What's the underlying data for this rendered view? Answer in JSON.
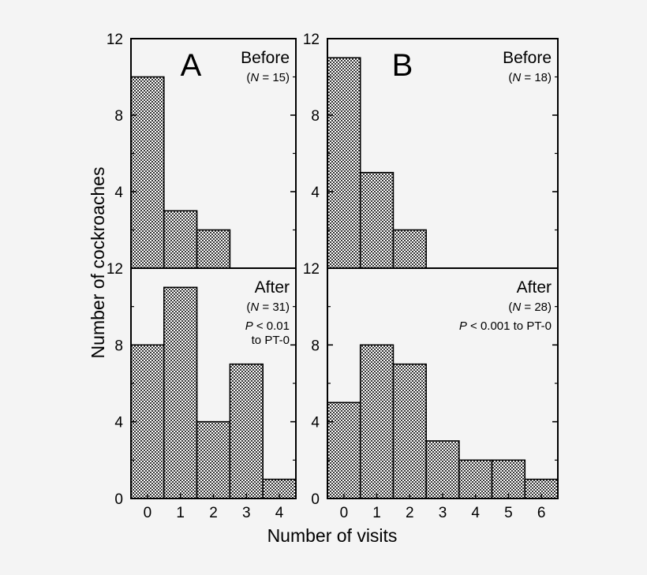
{
  "background": "#f4f4f4",
  "bar_color": "#888888",
  "ylabel": "Number of cockroaches",
  "xlabel": "Number of visits",
  "chart_data": [
    {
      "panel": "A",
      "type": "bar",
      "categories": [
        "0",
        "1",
        "2",
        "3",
        "4"
      ],
      "ylim": [
        0,
        12
      ],
      "yticks": [
        "0",
        "4",
        "8",
        "12"
      ],
      "subplots": [
        {
          "label": "Before",
          "n_label": "(N = 15)",
          "values": [
            10,
            3,
            2,
            0,
            0
          ],
          "annotation": []
        },
        {
          "label": "After",
          "n_label": "(N = 31)",
          "values": [
            8,
            11,
            4,
            7,
            1
          ],
          "annotation": [
            "P < 0.01",
            "to PT-0"
          ]
        }
      ]
    },
    {
      "panel": "B",
      "type": "bar",
      "categories": [
        "0",
        "1",
        "2",
        "3",
        "4",
        "5",
        "6"
      ],
      "ylim": [
        0,
        12
      ],
      "yticks": [
        "0",
        "4",
        "8",
        "12"
      ],
      "subplots": [
        {
          "label": "Before",
          "n_label": "(N = 18)",
          "values": [
            11,
            5,
            2,
            0,
            0,
            0,
            0
          ],
          "annotation": []
        },
        {
          "label": "After",
          "n_label": "(N = 28)",
          "values": [
            5,
            8,
            7,
            3,
            2,
            2,
            1
          ],
          "annotation": [
            "P < 0.001 to PT-0"
          ]
        }
      ]
    }
  ]
}
